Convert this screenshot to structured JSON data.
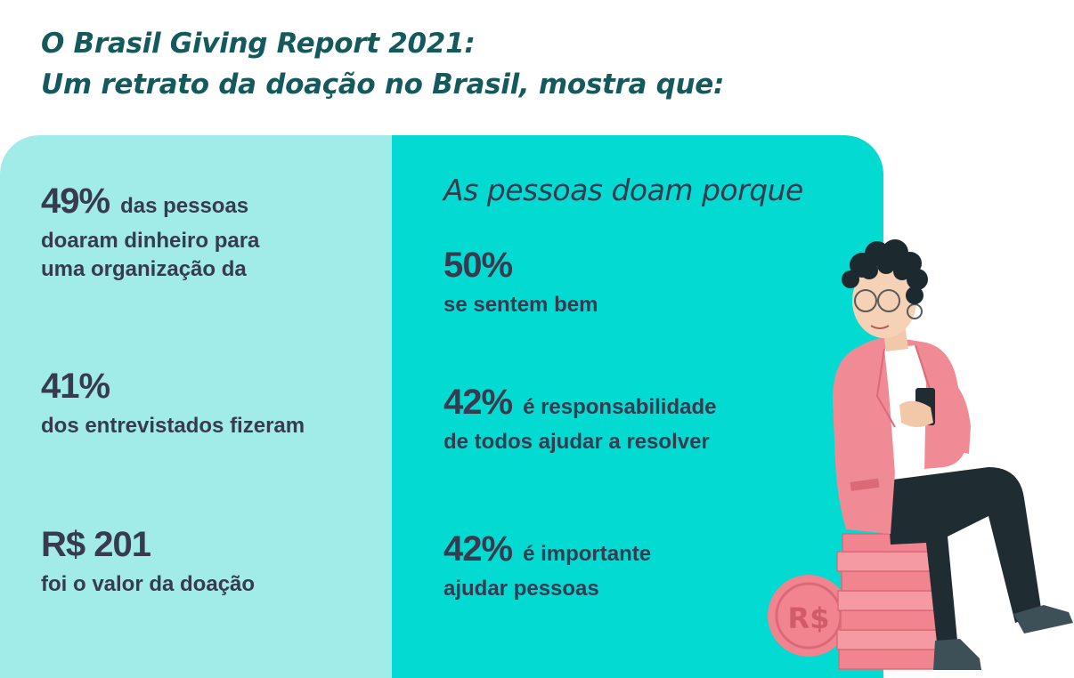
{
  "title": {
    "line1": "O Brasil Giving Report 2021:",
    "line2": "Um retrato da doação no Brasil, mostra que:"
  },
  "left_stats": [
    {
      "value": "49%",
      "inline_text": "das pessoas",
      "lines": [
        "doaram dinheiro para",
        "uma organização da"
      ]
    },
    {
      "value": "41%",
      "inline_text": "",
      "lines": [
        "dos entrevistados fizeram"
      ]
    },
    {
      "value": "R$ 201",
      "inline_text": "",
      "lines": [
        "foi o valor da doação"
      ]
    }
  ],
  "right_heading": "As pessoas doam porque",
  "right_stats": [
    {
      "value": "50%",
      "inline_text": "",
      "lines": [
        "se sentem bem"
      ]
    },
    {
      "value": "42%",
      "inline_text": "é responsabilidade",
      "lines": [
        "de todos ajudar a resolver"
      ]
    },
    {
      "value": "42%",
      "inline_text": "é importante",
      "lines": [
        "ajudar pessoas"
      ]
    }
  ],
  "illustration": {
    "coin_label": "R$"
  },
  "colors": {
    "title": "#14595c",
    "text": "#383b4f",
    "panel_left": "#a1ebe8",
    "panel_right": "#02dad2",
    "jacket": "#f08b96",
    "coin": "#f2848f",
    "pants": "#1f2d33",
    "hair": "#1c2a30"
  }
}
